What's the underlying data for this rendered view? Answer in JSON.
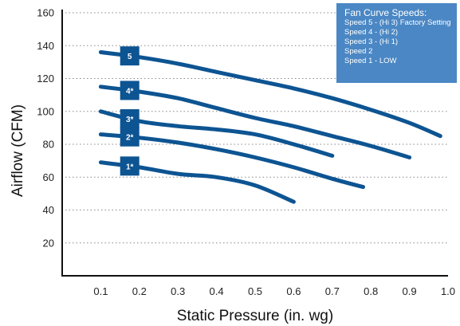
{
  "chart_data": {
    "type": "line",
    "title": "",
    "xlabel": "Static Pressure (in. wg)",
    "ylabel": "Airflow (CFM)",
    "xlim": [
      0,
      1.0
    ],
    "ylim": [
      0,
      160
    ],
    "x_ticks": [
      "0.1",
      "0.2",
      "0.3",
      "0.4",
      "0.5",
      "0.6",
      "0.7",
      "0.8",
      "0.9",
      "1.0"
    ],
    "y_ticks": [
      "20",
      "40",
      "60",
      "80",
      "100",
      "120",
      "140",
      "160"
    ],
    "grid": "horizontal dotted",
    "legend": {
      "title": "Fan Curve Speeds:",
      "placement": "top-right",
      "items": [
        "Speed 5 - (Hi 3) Factory Setting",
        "Speed 4 - (Hi 2)",
        "Speed 3 - (Hi 1)",
        "Speed 2",
        "Speed 1 - LOW"
      ]
    },
    "series": [
      {
        "label": "5",
        "color": "#0d5492",
        "x": [
          0.1,
          0.2,
          0.3,
          0.4,
          0.5,
          0.6,
          0.7,
          0.8,
          0.9,
          0.98
        ],
        "y": [
          136,
          133,
          129,
          124,
          119,
          114,
          108,
          101,
          93,
          85
        ]
      },
      {
        "label": "4*",
        "color": "#0d5492",
        "x": [
          0.1,
          0.2,
          0.3,
          0.4,
          0.5,
          0.6,
          0.7,
          0.8,
          0.9
        ],
        "y": [
          115,
          112,
          108,
          102,
          96,
          91,
          85,
          79,
          72
        ]
      },
      {
        "label": "3*",
        "color": "#0d5492",
        "x": [
          0.1,
          0.2,
          0.3,
          0.4,
          0.5,
          0.6,
          0.7
        ],
        "y": [
          100,
          94,
          91,
          89,
          86,
          80,
          73
        ]
      },
      {
        "label": "2*",
        "color": "#0d5492",
        "x": [
          0.1,
          0.2,
          0.3,
          0.4,
          0.5,
          0.6,
          0.7,
          0.78
        ],
        "y": [
          86,
          84,
          81,
          77,
          72,
          66,
          59,
          54
        ]
      },
      {
        "label": "1*",
        "color": "#0d5492",
        "x": [
          0.1,
          0.2,
          0.3,
          0.4,
          0.5,
          0.6
        ],
        "y": [
          69,
          66,
          62,
          60,
          55,
          45
        ]
      }
    ]
  }
}
